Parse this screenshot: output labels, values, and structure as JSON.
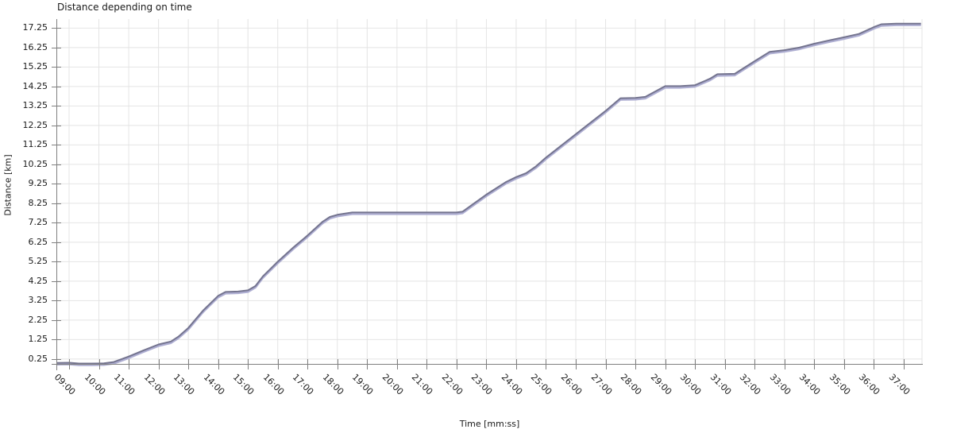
{
  "chart": {
    "title": "Distance depending on time",
    "x_axis_label": "Time [mm:ss]",
    "y_axis_label": "Distance [km]"
  },
  "colors": {
    "line_dark": "#74748f",
    "line_shadow": "#aeaed2",
    "grid": "#e4e4e4",
    "axis": "#808080",
    "text": "#1a1a1a",
    "background": "#ffffff"
  },
  "chart_data": {
    "type": "line",
    "title": "Distance depending on time",
    "xlabel": "Time [mm:ss]",
    "ylabel": "Distance [km]",
    "grid": true,
    "legend": "none",
    "x_range": [
      "08:36",
      "37:37"
    ],
    "ylim": [
      0,
      17.7
    ],
    "x_tick_labels": [
      "09:00",
      "10:00",
      "11:00",
      "12:00",
      "13:00",
      "14:00",
      "15:00",
      "16:00",
      "17:00",
      "18:00",
      "19:00",
      "20:00",
      "21:00",
      "22:00",
      "23:00",
      "24:00",
      "25:00",
      "26:00",
      "27:00",
      "28:00",
      "29:00",
      "30:00",
      "31:00",
      "32:00",
      "33:00",
      "34:00",
      "35:00",
      "36:00",
      "37:00"
    ],
    "y_tick_labels": [
      "0.25",
      "1.25",
      "2.25",
      "3.25",
      "4.25",
      "5.25",
      "6.25",
      "7.25",
      "8.25",
      "9.25",
      "10.25",
      "11.25",
      "12.25",
      "13.25",
      "14.25",
      "15.25",
      "16.25",
      "17.25"
    ],
    "series": [
      {
        "name": "distance",
        "points": [
          [
            "08:36",
            0.05
          ],
          [
            "09:00",
            0.06
          ],
          [
            "09:20",
            0.02
          ],
          [
            "09:45",
            0.02
          ],
          [
            "10:10",
            0.03
          ],
          [
            "10:30",
            0.1
          ],
          [
            "11:00",
            0.38
          ],
          [
            "11:30",
            0.7
          ],
          [
            "12:00",
            1.0
          ],
          [
            "12:25",
            1.15
          ],
          [
            "12:40",
            1.4
          ],
          [
            "13:00",
            1.85
          ],
          [
            "13:30",
            2.75
          ],
          [
            "14:00",
            3.5
          ],
          [
            "14:15",
            3.7
          ],
          [
            "14:40",
            3.72
          ],
          [
            "15:00",
            3.78
          ],
          [
            "15:15",
            4.0
          ],
          [
            "15:30",
            4.5
          ],
          [
            "16:00",
            5.25
          ],
          [
            "16:30",
            5.95
          ],
          [
            "17:00",
            6.6
          ],
          [
            "17:30",
            7.3
          ],
          [
            "17:45",
            7.55
          ],
          [
            "18:00",
            7.66
          ],
          [
            "18:30",
            7.78
          ],
          [
            "19:00",
            7.78
          ],
          [
            "19:30",
            7.78
          ],
          [
            "20:00",
            7.78
          ],
          [
            "20:30",
            7.78
          ],
          [
            "21:00",
            7.78
          ],
          [
            "21:30",
            7.78
          ],
          [
            "22:00",
            7.78
          ],
          [
            "22:12",
            7.82
          ],
          [
            "22:30",
            8.15
          ],
          [
            "23:00",
            8.7
          ],
          [
            "23:40",
            9.35
          ],
          [
            "24:00",
            9.6
          ],
          [
            "24:20",
            9.8
          ],
          [
            "24:40",
            10.15
          ],
          [
            "25:00",
            10.6
          ],
          [
            "25:30",
            11.2
          ],
          [
            "26:00",
            11.8
          ],
          [
            "26:30",
            12.4
          ],
          [
            "27:00",
            13.0
          ],
          [
            "27:30",
            13.65
          ],
          [
            "28:00",
            13.66
          ],
          [
            "28:20",
            13.72
          ],
          [
            "29:00",
            14.27
          ],
          [
            "29:30",
            14.27
          ],
          [
            "30:00",
            14.32
          ],
          [
            "30:30",
            14.65
          ],
          [
            "30:45",
            14.88
          ],
          [
            "31:20",
            14.9
          ],
          [
            "32:00",
            15.55
          ],
          [
            "32:30",
            16.03
          ],
          [
            "33:00",
            16.12
          ],
          [
            "33:30",
            16.25
          ],
          [
            "34:00",
            16.45
          ],
          [
            "34:30",
            16.62
          ],
          [
            "35:00",
            16.78
          ],
          [
            "35:30",
            16.95
          ],
          [
            "36:00",
            17.3
          ],
          [
            "36:15",
            17.45
          ],
          [
            "36:45",
            17.48
          ],
          [
            "37:00",
            17.48
          ],
          [
            "37:35",
            17.48
          ]
        ]
      }
    ]
  }
}
